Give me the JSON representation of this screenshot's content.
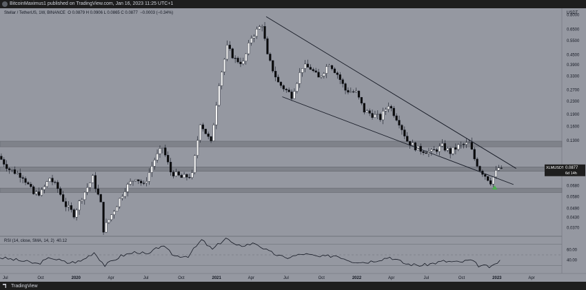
{
  "header": {
    "publisher_line": "BitcoinMaximus1 published on TradingView.com, Jan 16, 2023 11:25 UTC+1"
  },
  "legend": {
    "symbol": "Stellar / TetherUS, 1W, BINANCE",
    "ohlc": "O 0.0879  H 0.0906  L 0.0865  C 0.0877",
    "change": "−0.0003 (−0.34%)"
  },
  "footer": {
    "brand": "TradingView"
  },
  "colors": {
    "background": "#9598a1",
    "up_candle": "#f5f5f5",
    "down_candle": "#0b0b0b",
    "wick": "#131722",
    "zone": "#7b7e86",
    "rsi_line": "#131722",
    "signal_arrow": "#4caf50",
    "price_tag_bg": "#1e1e1e",
    "price_tag_text": "#ffffff"
  },
  "chart_data": [
    {
      "type": "candlestick",
      "scale": "log",
      "currency_label": "USDT",
      "ylim": [
        0.033,
        0.88
      ],
      "y_ticks": [
        {
          "label": "0.8000",
          "value": 0.8
        },
        {
          "label": "0.6500",
          "value": 0.65
        },
        {
          "label": "0.5500",
          "value": 0.55
        },
        {
          "label": "0.4500",
          "value": 0.45
        },
        {
          "label": "0.3900",
          "value": 0.39
        },
        {
          "label": "0.3300",
          "value": 0.33
        },
        {
          "label": "0.2700",
          "value": 0.27
        },
        {
          "label": "0.2300",
          "value": 0.23
        },
        {
          "label": "0.1900",
          "value": 0.19
        },
        {
          "label": "0.1600",
          "value": 0.16
        },
        {
          "label": "0.1300",
          "value": 0.13
        },
        {
          "label": "0.0680",
          "value": 0.068
        },
        {
          "label": "0.0580",
          "value": 0.058
        },
        {
          "label": "0.0490",
          "value": 0.049
        },
        {
          "label": "0.0430",
          "value": 0.043
        },
        {
          "label": "0.0370",
          "value": 0.037
        }
      ],
      "current_price": {
        "symbol": "XLMUSDT",
        "price": "0.0877",
        "countdown": "6d 14h",
        "value": 0.0877
      },
      "x_ticks": [
        {
          "label": "Jul",
          "date": "2019-07-01"
        },
        {
          "label": "Oct",
          "date": "2019-10-01"
        },
        {
          "label": "2020",
          "date": "2020-01-01"
        },
        {
          "label": "Apr",
          "date": "2020-04-01"
        },
        {
          "label": "Jul",
          "date": "2020-07-01"
        },
        {
          "label": "Oct",
          "date": "2020-10-01"
        },
        {
          "label": "2021",
          "date": "2021-01-01"
        },
        {
          "label": "Apr",
          "date": "2021-04-01"
        },
        {
          "label": "Jul",
          "date": "2021-07-01"
        },
        {
          "label": "Oct",
          "date": "2021-10-01"
        },
        {
          "label": "2022",
          "date": "2022-01-01"
        },
        {
          "label": "Apr",
          "date": "2022-04-01"
        },
        {
          "label": "Jul",
          "date": "2022-07-01"
        },
        {
          "label": "Oct",
          "date": "2022-10-01"
        },
        {
          "label": "2023",
          "date": "2023-01-01"
        },
        {
          "label": "Apr",
          "date": "2023-04-01"
        }
      ],
      "xlim": [
        "2019-06-17",
        "2023-06-19"
      ],
      "horizontal_zones": [
        {
          "low": 0.0835,
          "high": 0.089
        },
        {
          "low": 0.0615,
          "high": 0.0655
        },
        {
          "low": 0.119,
          "high": 0.129
        }
      ],
      "trendlines": [
        {
          "name": "descending resistance",
          "from": {
            "date": "2021-05-10",
            "value": 0.78
          },
          "to": {
            "date": "2023-02-20",
            "value": 0.087
          }
        },
        {
          "name": "descending support",
          "from": {
            "date": "2021-06-21",
            "value": 0.245
          },
          "to": {
            "date": "2023-02-13",
            "value": 0.069
          }
        }
      ],
      "signal_marker": {
        "date": "2022-12-26",
        "value": 0.0675
      },
      "path_points": [
        {
          "date": "2019-06-17",
          "value": 0.104
        },
        {
          "date": "2019-07-15",
          "value": 0.086
        },
        {
          "date": "2019-08-19",
          "value": 0.078
        },
        {
          "date": "2019-09-16",
          "value": 0.06
        },
        {
          "date": "2019-10-07",
          "value": 0.062
        },
        {
          "date": "2019-10-28",
          "value": 0.076
        },
        {
          "date": "2019-11-18",
          "value": 0.065
        },
        {
          "date": "2019-12-09",
          "value": 0.051
        },
        {
          "date": "2019-12-30",
          "value": 0.045
        },
        {
          "date": "2020-01-20",
          "value": 0.058
        },
        {
          "date": "2020-02-17",
          "value": 0.076
        },
        {
          "date": "2020-03-09",
          "value": 0.052
        },
        {
          "date": "2020-03-16",
          "value": 0.036
        },
        {
          "date": "2020-04-13",
          "value": 0.048
        },
        {
          "date": "2020-05-11",
          "value": 0.065
        },
        {
          "date": "2020-06-08",
          "value": 0.077
        },
        {
          "date": "2020-06-29",
          "value": 0.068
        },
        {
          "date": "2020-07-27",
          "value": 0.099
        },
        {
          "date": "2020-08-17",
          "value": 0.118
        },
        {
          "date": "2020-09-07",
          "value": 0.083
        },
        {
          "date": "2020-10-05",
          "value": 0.076
        },
        {
          "date": "2020-11-02",
          "value": 0.079
        },
        {
          "date": "2020-11-23",
          "value": 0.17
        },
        {
          "date": "2020-12-21",
          "value": 0.125
        },
        {
          "date": "2021-01-11",
          "value": 0.3
        },
        {
          "date": "2021-02-01",
          "value": 0.5
        },
        {
          "date": "2021-02-22",
          "value": 0.42
        },
        {
          "date": "2021-03-15",
          "value": 0.4
        },
        {
          "date": "2021-04-05",
          "value": 0.58
        },
        {
          "date": "2021-05-03",
          "value": 0.7
        },
        {
          "date": "2021-05-17",
          "value": 0.44
        },
        {
          "date": "2021-06-14",
          "value": 0.3
        },
        {
          "date": "2021-07-19",
          "value": 0.25
        },
        {
          "date": "2021-08-16",
          "value": 0.38
        },
        {
          "date": "2021-09-06",
          "value": 0.37
        },
        {
          "date": "2021-09-27",
          "value": 0.32
        },
        {
          "date": "2021-10-25",
          "value": 0.4
        },
        {
          "date": "2021-11-15",
          "value": 0.34
        },
        {
          "date": "2021-12-06",
          "value": 0.27
        },
        {
          "date": "2022-01-03",
          "value": 0.26
        },
        {
          "date": "2022-01-24",
          "value": 0.2
        },
        {
          "date": "2022-03-07",
          "value": 0.18
        },
        {
          "date": "2022-03-28",
          "value": 0.22
        },
        {
          "date": "2022-04-25",
          "value": 0.17
        },
        {
          "date": "2022-05-16",
          "value": 0.13
        },
        {
          "date": "2022-06-13",
          "value": 0.115
        },
        {
          "date": "2022-07-18",
          "value": 0.11
        },
        {
          "date": "2022-08-15",
          "value": 0.12
        },
        {
          "date": "2022-09-05",
          "value": 0.11
        },
        {
          "date": "2022-09-26",
          "value": 0.12
        },
        {
          "date": "2022-10-24",
          "value": 0.125
        },
        {
          "date": "2022-11-07",
          "value": 0.1
        },
        {
          "date": "2022-11-21",
          "value": 0.086
        },
        {
          "date": "2022-12-19",
          "value": 0.072
        },
        {
          "date": "2023-01-09",
          "value": 0.0877
        }
      ]
    },
    {
      "type": "line",
      "title": "RSI (14, close, SMA, 14, 2)",
      "value_label": "40.12",
      "ylim": [
        15,
        85
      ],
      "y_ticks": [
        {
          "label": "60.00",
          "value": 60
        },
        {
          "label": "40.00",
          "value": 40
        }
      ],
      "bands": [
        70,
        50,
        30
      ],
      "path_points": [
        {
          "date": "2019-06-17",
          "value": 45
        },
        {
          "date": "2019-08-19",
          "value": 38
        },
        {
          "date": "2019-09-23",
          "value": 33
        },
        {
          "date": "2019-10-28",
          "value": 45
        },
        {
          "date": "2019-12-09",
          "value": 35
        },
        {
          "date": "2020-01-13",
          "value": 38
        },
        {
          "date": "2020-02-17",
          "value": 55
        },
        {
          "date": "2020-03-16",
          "value": 30
        },
        {
          "date": "2020-04-27",
          "value": 48
        },
        {
          "date": "2020-06-08",
          "value": 56
        },
        {
          "date": "2020-07-06",
          "value": 50
        },
        {
          "date": "2020-08-10",
          "value": 68
        },
        {
          "date": "2020-09-14",
          "value": 48
        },
        {
          "date": "2020-10-19",
          "value": 48
        },
        {
          "date": "2020-11-23",
          "value": 78
        },
        {
          "date": "2020-12-21",
          "value": 60
        },
        {
          "date": "2021-01-25",
          "value": 82
        },
        {
          "date": "2021-02-22",
          "value": 66
        },
        {
          "date": "2021-04-12",
          "value": 72
        },
        {
          "date": "2021-05-17",
          "value": 56
        },
        {
          "date": "2021-06-28",
          "value": 44
        },
        {
          "date": "2021-08-16",
          "value": 52
        },
        {
          "date": "2021-09-27",
          "value": 46
        },
        {
          "date": "2021-11-08",
          "value": 49
        },
        {
          "date": "2021-12-20",
          "value": 38
        },
        {
          "date": "2022-01-24",
          "value": 36
        },
        {
          "date": "2022-03-07",
          "value": 42
        },
        {
          "date": "2022-03-28",
          "value": 46
        },
        {
          "date": "2022-05-09",
          "value": 33
        },
        {
          "date": "2022-06-20",
          "value": 30
        },
        {
          "date": "2022-08-15",
          "value": 38
        },
        {
          "date": "2022-09-26",
          "value": 36
        },
        {
          "date": "2022-10-24",
          "value": 40
        },
        {
          "date": "2022-11-14",
          "value": 30
        },
        {
          "date": "2022-12-19",
          "value": 27
        },
        {
          "date": "2023-01-09",
          "value": 40.12
        }
      ]
    }
  ]
}
